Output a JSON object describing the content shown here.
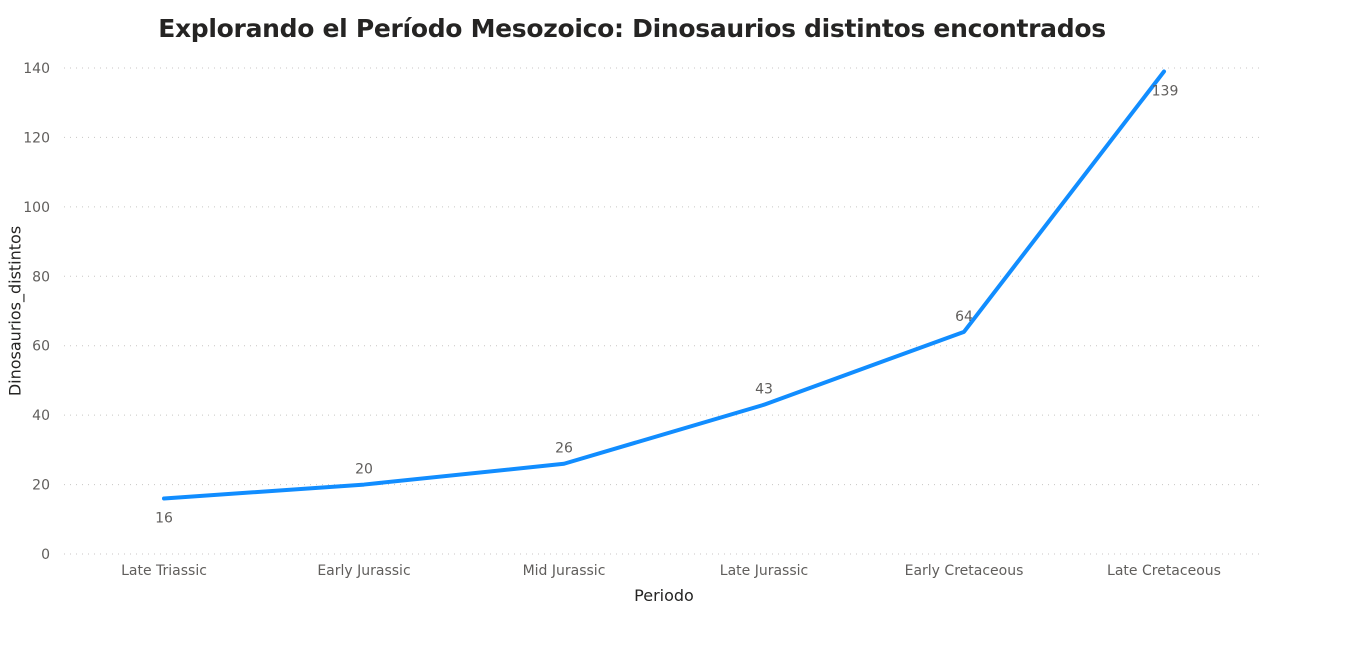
{
  "chart_data": {
    "type": "line",
    "title": "Explorando el Período Mesozoico: Dinosaurios distintos encontrados",
    "xlabel": "Periodo",
    "ylabel": "Dinosaurios_distintos",
    "categories": [
      "Late Triassic",
      "Early Jurassic",
      "Mid Jurassic",
      "Late Jurassic",
      "Early Cretaceous",
      "Late Cretaceous"
    ],
    "series": [
      {
        "values": [
          16,
          20,
          26,
          43,
          64,
          139
        ]
      }
    ],
    "ylim": [
      0,
      140
    ],
    "yticks": [
      0,
      20,
      40,
      60,
      80,
      100,
      120,
      140
    ],
    "grid": true,
    "line_color": "#118DFF"
  }
}
